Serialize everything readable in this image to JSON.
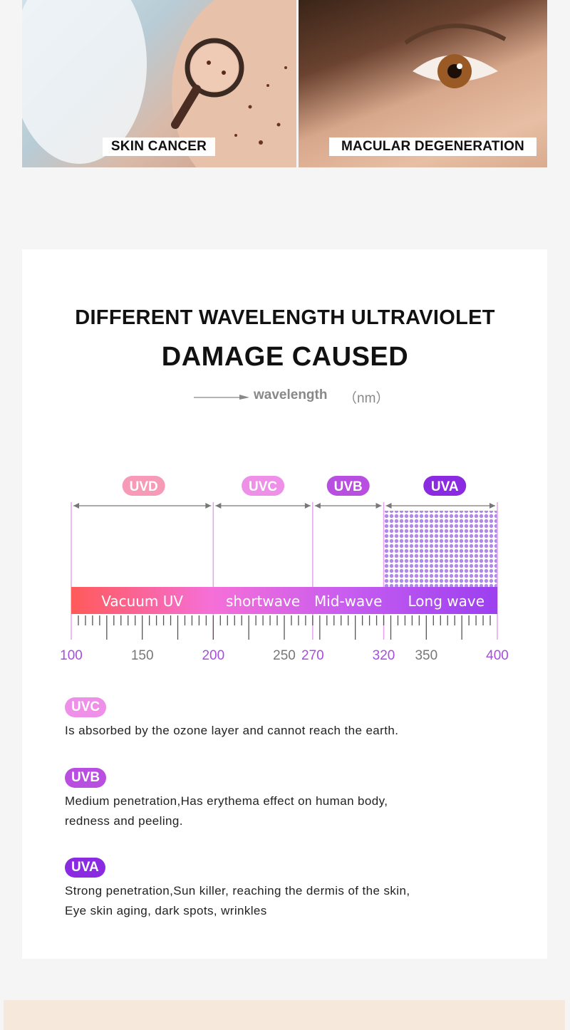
{
  "photos": {
    "left_caption": "SKIN CANCER",
    "right_caption": "MACULAR DEGENERATION"
  },
  "heading": {
    "line1": "DIFFERENT WAVELENGTH ULTRAVIOLET",
    "line2": "DAMAGE CAUSED"
  },
  "axis": {
    "label": "wavelength",
    "unit": "（nm）"
  },
  "bands": [
    {
      "name": "UVD",
      "label": "Vacuum UV",
      "start": 100,
      "end": 200,
      "color": "#f79ab8"
    },
    {
      "name": "UVC",
      "label": "shortwave",
      "start": 200,
      "end": 270,
      "color": "#ee8fe8"
    },
    {
      "name": "UVB",
      "label": "Mid-wave",
      "start": 270,
      "end": 320,
      "color": "#b94fe0"
    },
    {
      "name": "UVA",
      "label": "Long wave",
      "start": 320,
      "end": 400,
      "color": "#8a2be2"
    }
  ],
  "ticks": {
    "labels": [
      {
        "value": 100,
        "text": "100",
        "highlight": true
      },
      {
        "value": 150,
        "text": "150",
        "highlight": false
      },
      {
        "value": 200,
        "text": "200",
        "highlight": true
      },
      {
        "value": 250,
        "text": "250",
        "highlight": false
      },
      {
        "value": 270,
        "text": "270",
        "highlight": true
      },
      {
        "value": 320,
        "text": "320",
        "highlight": true
      },
      {
        "value": 350,
        "text": "350",
        "highlight": false
      },
      {
        "value": 400,
        "text": "400",
        "highlight": true
      }
    ]
  },
  "descriptions": [
    {
      "tag": "UVC",
      "color": "#ee8fe8",
      "lines": [
        "Is absorbed by the ozone layer and cannot reach the earth."
      ]
    },
    {
      "tag": "UVB",
      "color": "#b94fe0",
      "lines": [
        "Medium penetration,Has erythema effect on human body,",
        "redness and peeling."
      ]
    },
    {
      "tag": "UVA",
      "color": "#8a2be2",
      "lines": [
        "Strong penetration,Sun killer, reaching the dermis of the skin,",
        "Eye skin aging, dark spots, wrinkles"
      ]
    }
  ],
  "colors": {
    "highlight": "#a64ee0",
    "tick": "#555555",
    "gradient": [
      "#ff5a5a",
      "#f56fd8",
      "#c65cf0",
      "#9b3ff0"
    ]
  }
}
